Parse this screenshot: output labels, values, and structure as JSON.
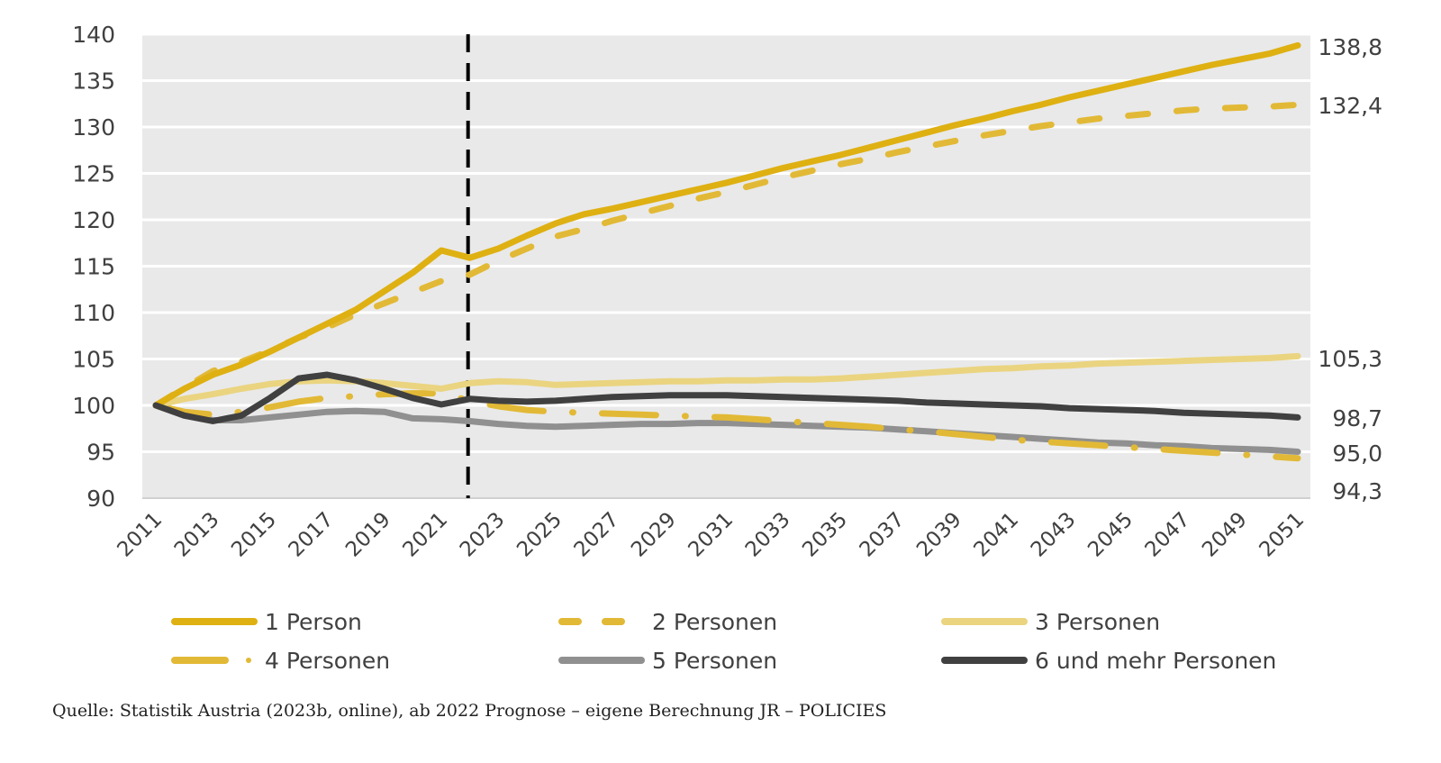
{
  "chart_data": {
    "type": "line",
    "title": "",
    "xlabel": "",
    "ylabel": "",
    "ylim": [
      90,
      140
    ],
    "yticks": [
      "90",
      "95",
      "100",
      "105",
      "110",
      "115",
      "120",
      "125",
      "130",
      "135",
      "140"
    ],
    "xlim": [
      2011,
      2051
    ],
    "xticks": [
      "2011",
      "2013",
      "2015",
      "2017",
      "2019",
      "2021",
      "2023",
      "2025",
      "2027",
      "2029",
      "2031",
      "2033",
      "2035",
      "2037",
      "2039",
      "2041",
      "2043",
      "2045",
      "2047",
      "2049",
      "2051"
    ],
    "grid": "horizontal",
    "background": "#e9e9e9",
    "forecast_marker": {
      "year": 2022,
      "style": "dashed",
      "color": "#000000"
    },
    "x": [
      2011,
      2012,
      2013,
      2014,
      2015,
      2016,
      2017,
      2018,
      2019,
      2020,
      2021,
      2022,
      2023,
      2024,
      2025,
      2026,
      2027,
      2028,
      2029,
      2030,
      2031,
      2032,
      2033,
      2034,
      2035,
      2036,
      2037,
      2038,
      2039,
      2040,
      2041,
      2042,
      2043,
      2044,
      2045,
      2046,
      2047,
      2048,
      2049,
      2050,
      2051
    ],
    "series": [
      {
        "name": "1 Person",
        "color": "#deb012",
        "style": "solid",
        "end_label": "138,8",
        "values": [
          100,
          101.8,
          103.3,
          104.4,
          105.8,
          107.3,
          108.8,
          110.3,
          112.3,
          114.3,
          116.7,
          115.9,
          116.9,
          118.3,
          119.6,
          120.6,
          121.2,
          121.9,
          122.6,
          123.3,
          124.0,
          124.8,
          125.6,
          126.3,
          127.0,
          127.8,
          128.6,
          129.4,
          130.2,
          130.9,
          131.7,
          132.4,
          133.2,
          133.9,
          134.6,
          135.3,
          136.0,
          136.7,
          137.3,
          137.9,
          138.8
        ]
      },
      {
        "name": "2 Personen",
        "color": "#e2b936",
        "style": "dashed",
        "end_label": "132,4",
        "values": [
          100,
          101.9,
          103.7,
          104.7,
          105.9,
          107.3,
          108.4,
          109.8,
          111.0,
          112.2,
          113.4,
          114.1,
          115.6,
          116.9,
          118.2,
          119.0,
          119.9,
          120.7,
          121.5,
          122.3,
          123.0,
          123.8,
          124.6,
          125.3,
          126.0,
          126.6,
          127.3,
          127.9,
          128.5,
          129.1,
          129.6,
          130.1,
          130.5,
          130.9,
          131.2,
          131.5,
          131.8,
          132.0,
          132.1,
          132.2,
          132.4
        ]
      },
      {
        "name": "3 Personen",
        "color": "#ead480",
        "style": "solid",
        "end_label": "105,3",
        "values": [
          100,
          100.7,
          101.2,
          101.8,
          102.3,
          102.6,
          102.7,
          102.6,
          102.4,
          102.1,
          101.8,
          102.4,
          102.6,
          102.5,
          102.2,
          102.3,
          102.4,
          102.5,
          102.6,
          102.6,
          102.7,
          102.7,
          102.8,
          102.8,
          102.9,
          103.1,
          103.3,
          103.5,
          103.7,
          103.9,
          104.0,
          104.2,
          104.3,
          104.5,
          104.6,
          104.7,
          104.8,
          104.9,
          105.0,
          105.1,
          105.3
        ]
      },
      {
        "name": "4 Personen",
        "color": "#e2b936",
        "style": "dashdot",
        "end_label": "94,3",
        "values": [
          100,
          99.3,
          99.0,
          99.3,
          99.8,
          100.4,
          100.8,
          101.0,
          101.2,
          101.3,
          101.3,
          100.5,
          99.9,
          99.5,
          99.3,
          99.2,
          99.1,
          99.0,
          98.9,
          98.8,
          98.7,
          98.5,
          98.3,
          98.1,
          97.9,
          97.7,
          97.4,
          97.2,
          96.9,
          96.6,
          96.3,
          96.1,
          95.9,
          95.7,
          95.5,
          95.3,
          95.1,
          94.9,
          94.7,
          94.5,
          94.3
        ]
      },
      {
        "name": "5 Personen",
        "color": "#909090",
        "style": "solid",
        "end_label": "95,0",
        "values": [
          100,
          98.9,
          98.4,
          98.4,
          98.7,
          99.0,
          99.3,
          99.4,
          99.3,
          98.6,
          98.5,
          98.3,
          98.0,
          97.8,
          97.7,
          97.8,
          97.9,
          98.0,
          98.0,
          98.1,
          98.1,
          98.0,
          97.9,
          97.8,
          97.7,
          97.6,
          97.4,
          97.2,
          97.0,
          96.8,
          96.6,
          96.4,
          96.2,
          96.0,
          95.9,
          95.7,
          95.6,
          95.4,
          95.3,
          95.2,
          95.0
        ]
      },
      {
        "name": "6 und mehr Personen",
        "color": "#404040",
        "style": "solid",
        "end_label": "98,7",
        "values": [
          100,
          98.9,
          98.3,
          98.9,
          100.8,
          102.9,
          103.3,
          102.7,
          101.8,
          100.8,
          100.1,
          100.7,
          100.5,
          100.4,
          100.5,
          100.7,
          100.9,
          101.0,
          101.1,
          101.1,
          101.1,
          101.0,
          100.9,
          100.8,
          100.7,
          100.6,
          100.5,
          100.3,
          100.2,
          100.1,
          100.0,
          99.9,
          99.7,
          99.6,
          99.5,
          99.4,
          99.2,
          99.1,
          99.0,
          98.9,
          98.7
        ]
      }
    ],
    "legend": {
      "placement": "bottom",
      "columns": 3
    }
  },
  "legend_items": [
    {
      "label": "1 Person"
    },
    {
      "label": "2 Personen"
    },
    {
      "label": "3 Personen"
    },
    {
      "label": "4 Personen"
    },
    {
      "label": "5 Personen"
    },
    {
      "label": "6 und mehr Personen"
    }
  ],
  "source": "Quelle: Statistik Austria (2023b, online), ab 2022 Prognose – eigene Berechnung JR – POLICIES"
}
